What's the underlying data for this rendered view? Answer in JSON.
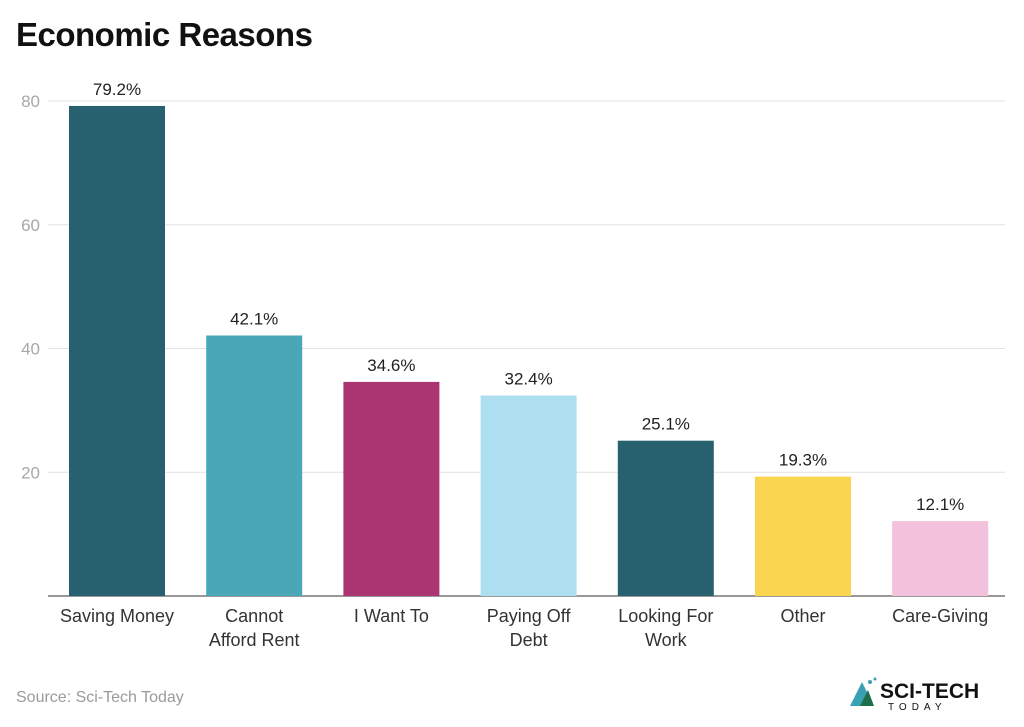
{
  "chart_data": {
    "type": "bar",
    "title": "Economic Reasons",
    "categories": [
      [
        "Saving Money"
      ],
      [
        "Cannot",
        "Afford Rent"
      ],
      [
        "I Want To"
      ],
      [
        "Paying Off",
        "Debt"
      ],
      [
        "Looking For",
        "Work"
      ],
      [
        "Other"
      ],
      [
        "Care-Giving"
      ]
    ],
    "values": [
      79.2,
      42.1,
      34.6,
      32.4,
      25.1,
      19.3,
      12.1
    ],
    "data_labels": [
      "79.2%",
      "42.1%",
      "34.6%",
      "32.4%",
      "25.1%",
      "19.3%",
      "12.1%"
    ],
    "colors": [
      "#27606f",
      "#4aa7b8",
      "#ab3572",
      "#addff0",
      "#27606f",
      "#fad550",
      "#f2c1dc"
    ],
    "yticks": [
      20,
      40,
      60,
      80
    ],
    "ylim": [
      0,
      80
    ],
    "grid": true,
    "xlabel": "",
    "ylabel": ""
  },
  "source": "Source: Sci-Tech Today",
  "logo": {
    "text": "SCI-TECH",
    "subtext": "TODAY"
  }
}
